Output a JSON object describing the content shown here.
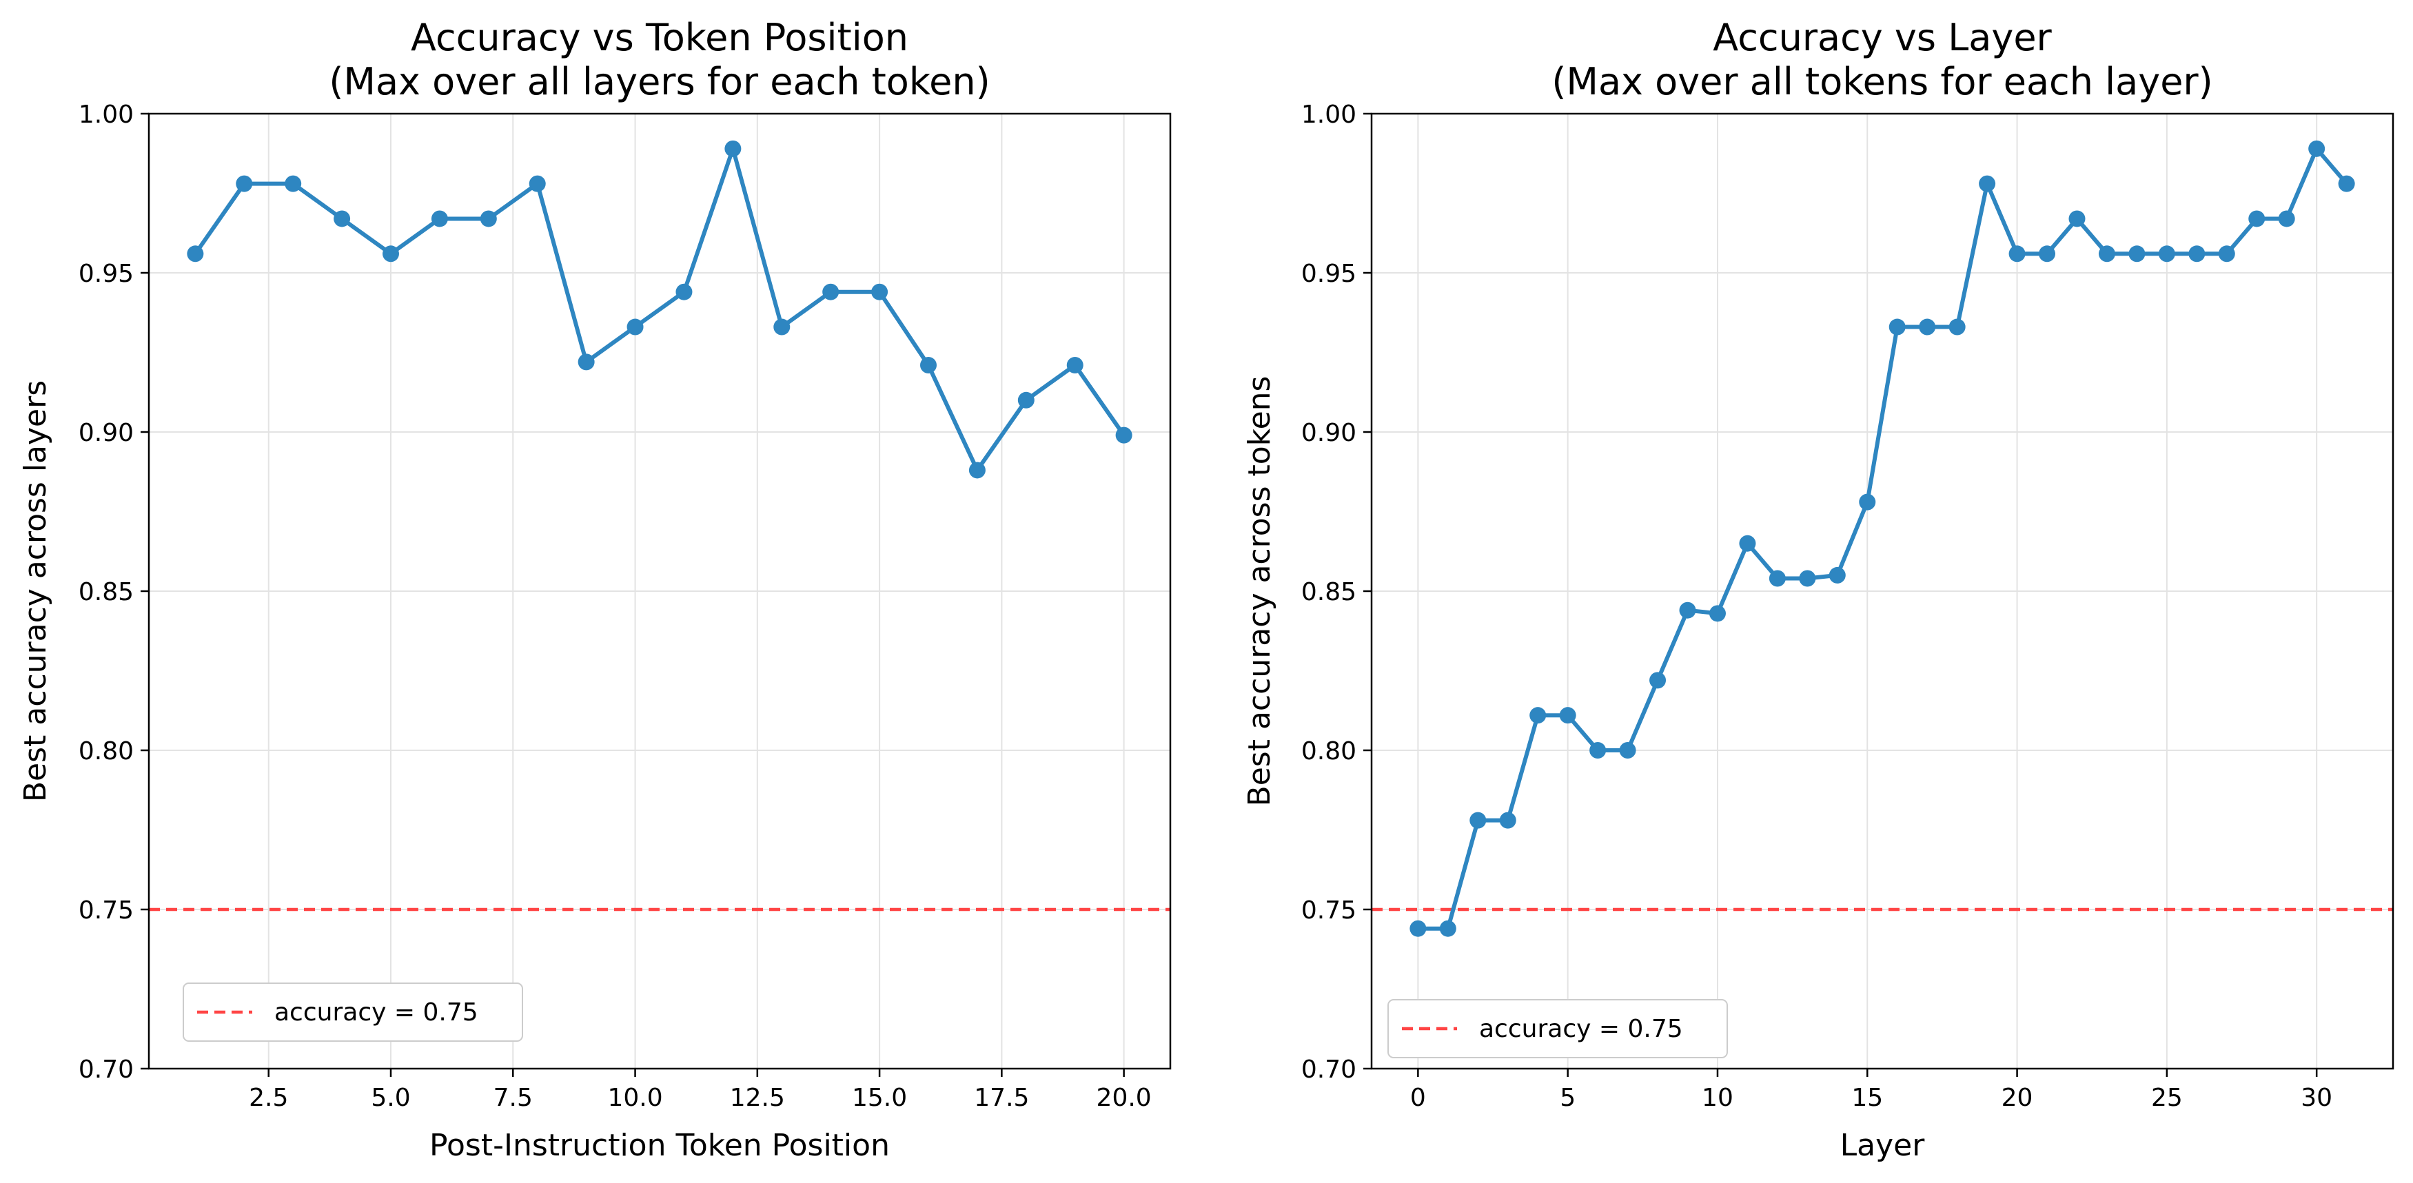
{
  "chart_data": [
    {
      "type": "line",
      "title": "Accuracy vs Token Position",
      "subtitle": "(Max over all layers for each token)",
      "xlabel": "Post-Instruction Token Position",
      "ylabel": "Best accuracy across layers",
      "xlim": [
        0.05,
        20.95
      ],
      "ylim": [
        0.7,
        1.0
      ],
      "xticks": [
        "2.5",
        "5.0",
        "7.5",
        "10.0",
        "12.5",
        "15.0",
        "17.5",
        "20.0"
      ],
      "yticks": [
        "0.70",
        "0.75",
        "0.80",
        "0.85",
        "0.90",
        "0.95",
        "1.00"
      ],
      "grid": true,
      "legend_position": "lower-left",
      "series": [
        {
          "color": "#2e86c1",
          "x": [
            1,
            2,
            3,
            4,
            5,
            6,
            7,
            8,
            9,
            10,
            11,
            12,
            13,
            14,
            15,
            16,
            17,
            18,
            19,
            20
          ],
          "y": [
            0.956,
            0.978,
            0.978,
            0.967,
            0.956,
            0.967,
            0.967,
            0.978,
            0.922,
            0.933,
            0.944,
            0.989,
            0.933,
            0.944,
            0.944,
            0.921,
            0.888,
            0.91,
            0.921,
            0.899
          ]
        }
      ],
      "reference_line": {
        "y": 0.75,
        "label": "accuracy = 0.75",
        "color": "#ff4444"
      }
    },
    {
      "type": "line",
      "title": "Accuracy vs Layer",
      "subtitle": "(Max over all tokens for each layer)",
      "xlabel": "Layer",
      "ylabel": "Best accuracy across tokens",
      "xlim": [
        -1.55,
        32.55
      ],
      "ylim": [
        0.7,
        1.0
      ],
      "xticks": [
        "0",
        "5",
        "10",
        "15",
        "20",
        "25",
        "30"
      ],
      "yticks": [
        "0.70",
        "0.75",
        "0.80",
        "0.85",
        "0.90",
        "0.95",
        "1.00"
      ],
      "grid": true,
      "legend_position": "lower-left",
      "series": [
        {
          "color": "#2e86c1",
          "x": [
            0,
            1,
            2,
            3,
            4,
            5,
            6,
            7,
            8,
            9,
            10,
            11,
            12,
            13,
            14,
            15,
            16,
            17,
            18,
            19,
            20,
            21,
            22,
            23,
            24,
            25,
            26,
            27,
            28,
            29,
            30,
            31
          ],
          "y": [
            0.744,
            0.744,
            0.778,
            0.778,
            0.811,
            0.811,
            0.8,
            0.8,
            0.822,
            0.844,
            0.843,
            0.865,
            0.854,
            0.854,
            0.855,
            0.878,
            0.933,
            0.933,
            0.933,
            0.978,
            0.956,
            0.956,
            0.967,
            0.956,
            0.956,
            0.956,
            0.956,
            0.956,
            0.967,
            0.967,
            0.989,
            0.978
          ]
        }
      ],
      "reference_line": {
        "y": 0.75,
        "label": "accuracy = 0.75",
        "color": "#ff4444"
      }
    }
  ]
}
